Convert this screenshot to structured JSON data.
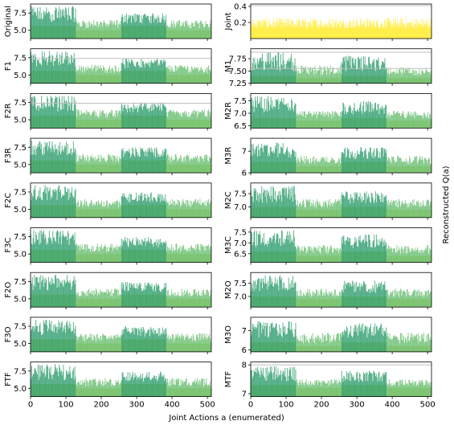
{
  "figure": {
    "xlabel": "Joint Actions a (enumerated)",
    "right_ylabel": "Reconstructed Q(a)",
    "x_ticks": [
      0,
      100,
      200,
      300,
      400,
      500
    ],
    "colors": {
      "dark": "#2f9e6e",
      "mid": "#6bbf73",
      "light": "#c8df7a",
      "joint": "#ffee4d",
      "ref_line": "#bfbfbf"
    }
  },
  "chart_data": [
    {
      "panel": "Original",
      "type": "bar",
      "x_range": [
        0,
        511
      ],
      "ylim": [
        3.8,
        8.8
      ],
      "y_ticks": [
        5.0,
        7.5
      ],
      "y_tick_labels": [
        "5.0",
        "7.5"
      ],
      "blocks": [
        {
          "x": [
            0,
            127
          ],
          "base": 5.6,
          "top": 8.5
        },
        {
          "x": [
            128,
            255
          ],
          "base": 5.0,
          "top": 6.5
        },
        {
          "x": [
            256,
            383
          ],
          "base": 5.6,
          "top": 7.5
        },
        {
          "x": [
            384,
            511
          ],
          "base": 5.0,
          "top": 6.5
        }
      ]
    },
    {
      "panel": "Joint",
      "type": "bar",
      "x_range": [
        0,
        511
      ],
      "ylim": [
        0.0,
        0.43
      ],
      "y_ticks": [
        0.2,
        0.4
      ],
      "y_tick_labels": [
        "0.2",
        "0.4"
      ],
      "ref_lines": [
        0.41
      ],
      "blocks": [
        {
          "x": [
            0,
            511
          ],
          "base": 0.13,
          "top": 0.26
        }
      ]
    },
    {
      "panel": "F1",
      "type": "bar",
      "x_range": [
        0,
        511
      ],
      "ylim": [
        3.8,
        8.8
      ],
      "y_ticks": [
        5.0,
        7.5
      ],
      "y_tick_labels": [
        "5.0",
        "7.5"
      ],
      "ref_lines": [
        7.4
      ],
      "blocks": [
        {
          "x": [
            0,
            127
          ],
          "base": 5.6,
          "top": 8.5
        },
        {
          "x": [
            128,
            255
          ],
          "base": 5.0,
          "top": 6.5
        },
        {
          "x": [
            256,
            383
          ],
          "base": 5.6,
          "top": 7.4
        },
        {
          "x": [
            384,
            511
          ],
          "base": 5.0,
          "top": 6.5
        }
      ]
    },
    {
      "panel": "M1",
      "type": "bar",
      "x_range": [
        0,
        511
      ],
      "ylim": [
        7.25,
        7.95
      ],
      "y_ticks": [
        7.25,
        7.5,
        7.75
      ],
      "y_tick_labels": [
        "7.25",
        "7.50",
        "7.75"
      ],
      "ref_lines": [
        7.88,
        7.55
      ],
      "blocks": [
        {
          "x": [
            0,
            127
          ],
          "base": 7.4,
          "top": 7.88
        },
        {
          "x": [
            128,
            255
          ],
          "base": 7.36,
          "top": 7.62
        },
        {
          "x": [
            256,
            383
          ],
          "base": 7.4,
          "top": 7.82
        },
        {
          "x": [
            384,
            511
          ],
          "base": 7.36,
          "top": 7.58
        }
      ]
    },
    {
      "panel": "F2R",
      "type": "bar",
      "x_range": [
        0,
        511
      ],
      "ylim": [
        3.8,
        8.8
      ],
      "y_ticks": [
        5.0,
        7.5
      ],
      "y_tick_labels": [
        "5.0",
        "7.5"
      ],
      "ref_lines": [
        7.4
      ],
      "blocks": [
        {
          "x": [
            0,
            127
          ],
          "base": 5.6,
          "top": 8.5
        },
        {
          "x": [
            128,
            255
          ],
          "base": 5.0,
          "top": 6.5
        },
        {
          "x": [
            256,
            383
          ],
          "base": 5.6,
          "top": 7.5
        },
        {
          "x": [
            384,
            511
          ],
          "base": 5.0,
          "top": 6.5
        }
      ]
    },
    {
      "panel": "M2R",
      "type": "bar",
      "x_range": [
        0,
        511
      ],
      "ylim": [
        6.4,
        7.8
      ],
      "y_ticks": [
        6.5,
        7.0,
        7.5
      ],
      "y_tick_labels": [
        "6.5",
        "7.0",
        "7.5"
      ],
      "blocks": [
        {
          "x": [
            0,
            127
          ],
          "base": 6.8,
          "top": 7.7
        },
        {
          "x": [
            128,
            255
          ],
          "base": 6.7,
          "top": 7.1
        },
        {
          "x": [
            256,
            383
          ],
          "base": 6.8,
          "top": 7.5
        },
        {
          "x": [
            384,
            511
          ],
          "base": 6.7,
          "top": 7.1
        }
      ]
    },
    {
      "panel": "F3R",
      "type": "bar",
      "x_range": [
        0,
        511
      ],
      "ylim": [
        3.8,
        8.8
      ],
      "y_ticks": [
        5.0,
        7.5
      ],
      "y_tick_labels": [
        "5.0",
        "7.5"
      ],
      "blocks": [
        {
          "x": [
            0,
            127
          ],
          "base": 5.6,
          "top": 8.5
        },
        {
          "x": [
            128,
            255
          ],
          "base": 5.0,
          "top": 6.5
        },
        {
          "x": [
            256,
            383
          ],
          "base": 5.6,
          "top": 7.5
        },
        {
          "x": [
            384,
            511
          ],
          "base": 5.0,
          "top": 6.5
        }
      ]
    },
    {
      "panel": "M3R",
      "type": "bar",
      "x_range": [
        0,
        511
      ],
      "ylim": [
        6.0,
        7.6
      ],
      "y_ticks": [
        6,
        7
      ],
      "y_tick_labels": [
        "6",
        "7"
      ],
      "blocks": [
        {
          "x": [
            0,
            127
          ],
          "base": 6.5,
          "top": 7.4
        },
        {
          "x": [
            128,
            255
          ],
          "base": 6.3,
          "top": 6.8
        },
        {
          "x": [
            256,
            383
          ],
          "base": 6.5,
          "top": 7.2
        },
        {
          "x": [
            384,
            511
          ],
          "base": 6.3,
          "top": 6.8
        }
      ]
    },
    {
      "panel": "F2C",
      "type": "bar",
      "x_range": [
        0,
        511
      ],
      "ylim": [
        3.8,
        8.8
      ],
      "y_ticks": [
        5.0,
        7.5
      ],
      "y_tick_labels": [
        "5.0",
        "7.5"
      ],
      "blocks": [
        {
          "x": [
            0,
            127
          ],
          "base": 5.6,
          "top": 8.5
        },
        {
          "x": [
            128,
            255
          ],
          "base": 5.0,
          "top": 6.5
        },
        {
          "x": [
            256,
            383
          ],
          "base": 5.6,
          "top": 7.5
        },
        {
          "x": [
            384,
            511
          ],
          "base": 5.0,
          "top": 6.5
        }
      ]
    },
    {
      "panel": "M2C",
      "type": "bar",
      "x_range": [
        0,
        511
      ],
      "ylim": [
        6.6,
        7.9
      ],
      "y_ticks": [
        7.0,
        7.5
      ],
      "y_tick_labels": [
        "7.0",
        "7.5"
      ],
      "blocks": [
        {
          "x": [
            0,
            127
          ],
          "base": 7.0,
          "top": 7.8
        },
        {
          "x": [
            128,
            255
          ],
          "base": 6.9,
          "top": 7.3
        },
        {
          "x": [
            256,
            383
          ],
          "base": 7.0,
          "top": 7.6
        },
        {
          "x": [
            384,
            511
          ],
          "base": 6.9,
          "top": 7.3
        }
      ]
    },
    {
      "panel": "F3C",
      "type": "bar",
      "x_range": [
        0,
        511
      ],
      "ylim": [
        3.8,
        8.8
      ],
      "y_ticks": [
        5.0,
        7.5
      ],
      "y_tick_labels": [
        "5.0",
        "7.5"
      ],
      "blocks": [
        {
          "x": [
            0,
            127
          ],
          "base": 5.6,
          "top": 8.5
        },
        {
          "x": [
            128,
            255
          ],
          "base": 5.0,
          "top": 6.5
        },
        {
          "x": [
            256,
            383
          ],
          "base": 5.6,
          "top": 7.5
        },
        {
          "x": [
            384,
            511
          ],
          "base": 5.0,
          "top": 6.5
        }
      ]
    },
    {
      "panel": "M3C",
      "type": "bar",
      "x_range": [
        0,
        511
      ],
      "ylim": [
        6.1,
        7.7
      ],
      "y_ticks": [
        6.5,
        7.0,
        7.5
      ],
      "y_tick_labels": [
        "6.5",
        "7.0",
        "7.5"
      ],
      "blocks": [
        {
          "x": [
            0,
            127
          ],
          "base": 6.6,
          "top": 7.6
        },
        {
          "x": [
            128,
            255
          ],
          "base": 6.4,
          "top": 6.9
        },
        {
          "x": [
            256,
            383
          ],
          "base": 6.6,
          "top": 7.4
        },
        {
          "x": [
            384,
            511
          ],
          "base": 6.4,
          "top": 6.9
        }
      ]
    },
    {
      "panel": "F2O",
      "type": "bar",
      "x_range": [
        0,
        511
      ],
      "ylim": [
        3.8,
        8.8
      ],
      "y_ticks": [
        5.0,
        7.5
      ],
      "y_tick_labels": [
        "5.0",
        "7.5"
      ],
      "blocks": [
        {
          "x": [
            0,
            127
          ],
          "base": 5.6,
          "top": 8.5
        },
        {
          "x": [
            128,
            255
          ],
          "base": 5.0,
          "top": 6.5
        },
        {
          "x": [
            256,
            383
          ],
          "base": 5.6,
          "top": 7.5
        },
        {
          "x": [
            384,
            511
          ],
          "base": 5.0,
          "top": 6.5
        }
      ]
    },
    {
      "panel": "M2O",
      "type": "bar",
      "x_range": [
        0,
        511
      ],
      "ylim": [
        6.6,
        7.9
      ],
      "y_ticks": [
        7.0,
        7.5
      ],
      "y_tick_labels": [
        "7.0",
        "7.5"
      ],
      "blocks": [
        {
          "x": [
            0,
            127
          ],
          "base": 7.0,
          "top": 7.8
        },
        {
          "x": [
            128,
            255
          ],
          "base": 6.9,
          "top": 7.3
        },
        {
          "x": [
            256,
            383
          ],
          "base": 7.0,
          "top": 7.6
        },
        {
          "x": [
            384,
            511
          ],
          "base": 6.9,
          "top": 7.3
        }
      ]
    },
    {
      "panel": "F3O",
      "type": "bar",
      "x_range": [
        0,
        511
      ],
      "ylim": [
        3.8,
        8.8
      ],
      "y_ticks": [
        5.0,
        7.5
      ],
      "y_tick_labels": [
        "5.0",
        "7.5"
      ],
      "blocks": [
        {
          "x": [
            0,
            127
          ],
          "base": 5.6,
          "top": 8.5
        },
        {
          "x": [
            128,
            255
          ],
          "base": 5.0,
          "top": 6.5
        },
        {
          "x": [
            256,
            383
          ],
          "base": 5.6,
          "top": 7.5
        },
        {
          "x": [
            384,
            511
          ],
          "base": 5.0,
          "top": 6.5
        }
      ]
    },
    {
      "panel": "M3O",
      "type": "bar",
      "x_range": [
        0,
        511
      ],
      "ylim": [
        5.9,
        7.7
      ],
      "y_ticks": [
        6,
        7
      ],
      "y_tick_labels": [
        "6",
        "7"
      ],
      "blocks": [
        {
          "x": [
            0,
            127
          ],
          "base": 6.4,
          "top": 7.5
        },
        {
          "x": [
            128,
            255
          ],
          "base": 6.2,
          "top": 6.9
        },
        {
          "x": [
            256,
            383
          ],
          "base": 6.4,
          "top": 7.4
        },
        {
          "x": [
            384,
            511
          ],
          "base": 6.2,
          "top": 6.9
        }
      ]
    },
    {
      "panel": "FTF",
      "type": "bar",
      "x_range": [
        0,
        511
      ],
      "ylim": [
        3.8,
        8.8
      ],
      "y_ticks": [
        5.0,
        7.5
      ],
      "y_tick_labels": [
        "5.0",
        "7.5"
      ],
      "blocks": [
        {
          "x": [
            0,
            127
          ],
          "base": 5.6,
          "top": 8.5
        },
        {
          "x": [
            128,
            255
          ],
          "base": 5.0,
          "top": 6.5
        },
        {
          "x": [
            256,
            383
          ],
          "base": 5.6,
          "top": 7.5
        },
        {
          "x": [
            384,
            511
          ],
          "base": 5.0,
          "top": 6.5
        }
      ]
    },
    {
      "panel": "MTF",
      "type": "bar",
      "x_range": [
        0,
        511
      ],
      "ylim": [
        6.9,
        8.1
      ],
      "y_ticks": [
        7,
        8
      ],
      "y_tick_labels": [
        "7",
        "8"
      ],
      "ref_lines": [
        8.0
      ],
      "blocks": [
        {
          "x": [
            0,
            127
          ],
          "base": 7.3,
          "top": 7.95
        },
        {
          "x": [
            128,
            255
          ],
          "base": 7.2,
          "top": 7.5
        },
        {
          "x": [
            256,
            383
          ],
          "base": 7.3,
          "top": 7.8
        },
        {
          "x": [
            384,
            511
          ],
          "base": 7.2,
          "top": 7.5
        }
      ]
    }
  ]
}
